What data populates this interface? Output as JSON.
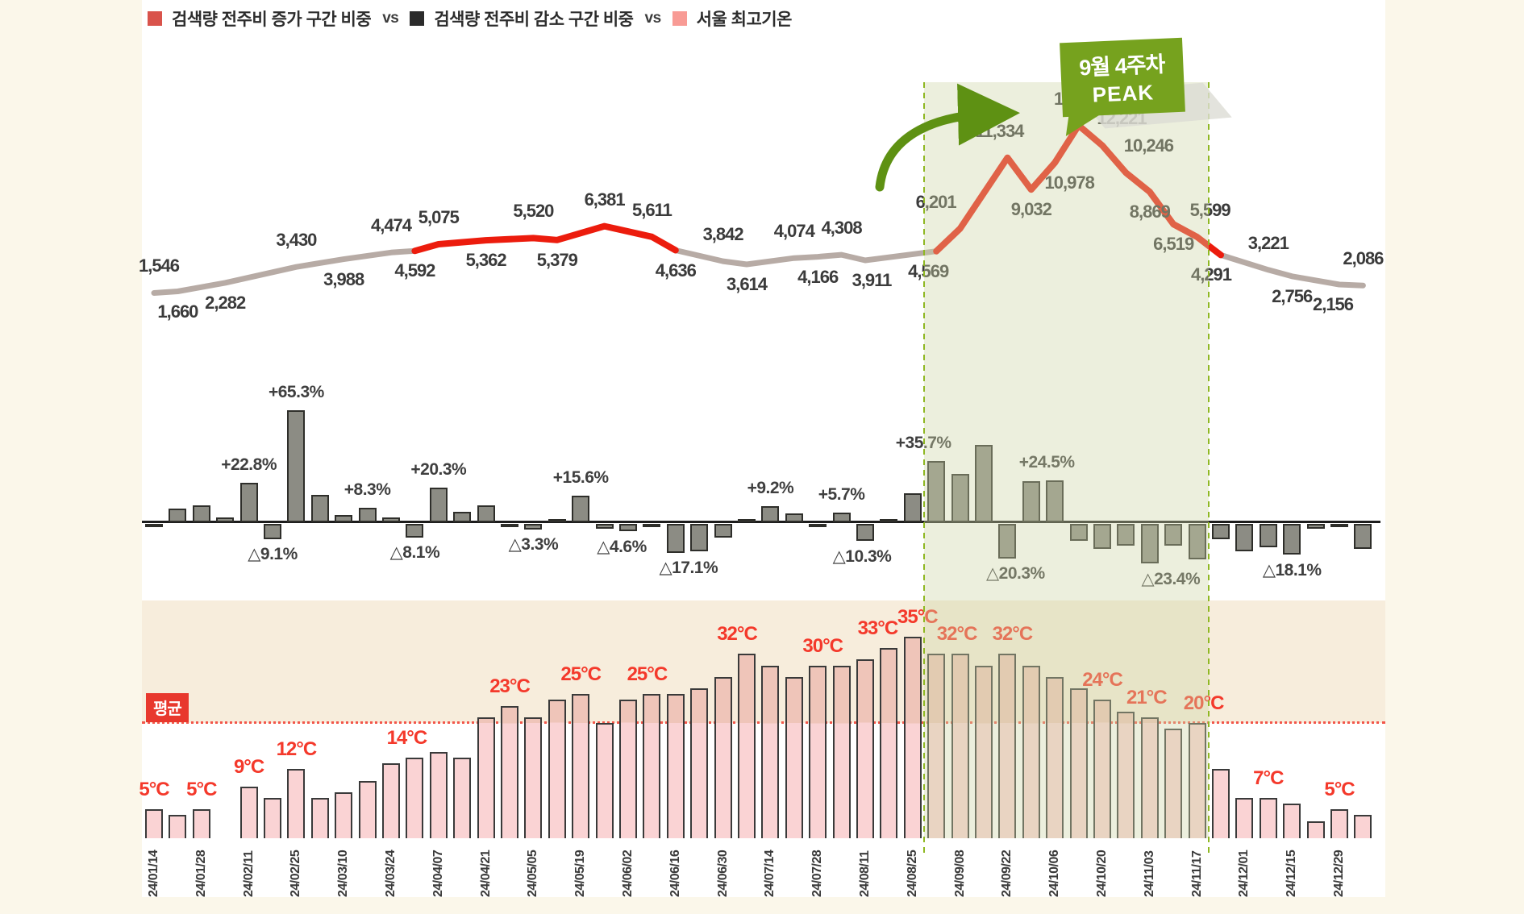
{
  "legend": {
    "increase_label": "검색량 전주비 증가 구간 비중",
    "vs1": "vs",
    "decrease_label": "검색량 전주비 감소 구간 비중",
    "vs2": "vs",
    "temp_label": "서울 최고기온",
    "increase_color": "#D9534B",
    "decrease_color": "#2B2B2B",
    "temp_color": "#F89B95"
  },
  "callout": {
    "line1": "9월 4주차",
    "line2": "PEAK",
    "color": "#76A21E"
  },
  "average_badge": "평균",
  "highlight": {
    "from": "24/08/25",
    "to": "24/11/17"
  },
  "chart_data": [
    {
      "type": "line",
      "name": "검색량 추이",
      "line_color_normal": "#B7ABA5",
      "line_color_increase": "#EC1C0D",
      "ylim": [
        0,
        14000
      ],
      "points": [
        {
          "week": 1,
          "value": 1546,
          "side": "above",
          "dx": 6
        },
        {
          "week": 2,
          "value": 1660,
          "side": "below"
        },
        {
          "week": 4,
          "value": 2282,
          "side": "below"
        },
        {
          "week": 7,
          "value": 3430,
          "side": "above"
        },
        {
          "week": 9,
          "value": 3988,
          "side": "below"
        },
        {
          "week": 11,
          "value": 4474,
          "side": "above"
        },
        {
          "week": 12,
          "value": 4592,
          "side": "below"
        },
        {
          "week": 13,
          "value": 5075,
          "side": "above"
        },
        {
          "week": 15,
          "value": 5362,
          "side": "below"
        },
        {
          "week": 17,
          "value": 5520,
          "side": "above"
        },
        {
          "week": 18,
          "value": 5379,
          "side": "below"
        },
        {
          "week": 20,
          "value": 6381,
          "side": "above"
        },
        {
          "week": 22,
          "value": 5611,
          "side": "above"
        },
        {
          "week": 23,
          "value": 4636,
          "side": "below"
        },
        {
          "week": 25,
          "value": 3842,
          "side": "above"
        },
        {
          "week": 26,
          "value": 3614,
          "side": "below"
        },
        {
          "week": 28,
          "value": 4074,
          "side": "above"
        },
        {
          "week": 29,
          "value": 4166,
          "side": "below"
        },
        {
          "week": 30,
          "value": 4308,
          "side": "above"
        },
        {
          "week": 31,
          "value": 3911,
          "side": "below",
          "dx": 8
        },
        {
          "week": 34,
          "value": 4569,
          "side": "below",
          "dx": -10
        },
        {
          "week": 35,
          "value": 6201,
          "side": "above",
          "dx": -30
        },
        {
          "week": 37,
          "value": 11334,
          "side": "above",
          "dx": -10
        },
        {
          "week": 38,
          "value": 9032,
          "side": "below"
        },
        {
          "week": 39,
          "value": 10978,
          "side": "below",
          "dx": 18
        },
        {
          "week": 40,
          "value": 13673,
          "side": "above"
        },
        {
          "week": 41,
          "value": 12221,
          "side": "above",
          "dx": 24
        },
        {
          "week": 42,
          "value": 10246,
          "side": "above",
          "dx": 28
        },
        {
          "week": 43,
          "value": 8869,
          "side": "below"
        },
        {
          "week": 44,
          "value": 6519,
          "side": "below"
        },
        {
          "week": 45,
          "value": 5599,
          "side": "above",
          "dx": 16
        },
        {
          "week": 46,
          "value": 4291,
          "side": "below",
          "dx": -12
        },
        {
          "week": 48,
          "value": 3221,
          "side": "above"
        },
        {
          "week": 49,
          "value": 2756,
          "side": "below"
        },
        {
          "week": 51,
          "value": 2156,
          "side": "below",
          "dx": -8
        },
        {
          "week": 52,
          "value": 2086,
          "side": "above"
        }
      ],
      "red_segments": [
        [
          6,
          13
        ],
        [
          20,
          31
        ]
      ]
    },
    {
      "type": "bar",
      "name": "검색량 전주비 증감률",
      "unit": "%",
      "bar_color": "#8C8C84",
      "values": [
        -1,
        8,
        10,
        3,
        22.8,
        -9.1,
        65.3,
        16,
        4,
        8.3,
        3,
        -8.1,
        20.3,
        6,
        10,
        -2,
        -3.3,
        2,
        15.6,
        -3,
        -4.6,
        -2,
        -17.1,
        -16,
        -8,
        2,
        9.2,
        5,
        -2,
        5.7,
        -10.3,
        2,
        16.8,
        35.7,
        28,
        45,
        -20.3,
        24,
        24.5,
        -10,
        -15,
        -13,
        -23.4,
        -13,
        -21,
        -9,
        -16,
        -14,
        -18.1,
        -3,
        -2,
        -15
      ],
      "labels": [
        {
          "bar": 5,
          "text": "+22.8%"
        },
        {
          "bar": 6,
          "text": "△9.1%"
        },
        {
          "bar": 7,
          "text": "+65.3%"
        },
        {
          "bar": 10,
          "text": "+8.3%"
        },
        {
          "bar": 12,
          "text": "△8.1%"
        },
        {
          "bar": 13,
          "text": "+20.3%"
        },
        {
          "bar": 17,
          "text": "△3.3%"
        },
        {
          "bar": 19,
          "text": "+15.6%"
        },
        {
          "bar": 21,
          "text": "△4.6%",
          "dx": -8
        },
        {
          "bar": 23,
          "text": "△17.1%",
          "dx": 16
        },
        {
          "bar": 27,
          "text": "+9.2%"
        },
        {
          "bar": 30,
          "text": "+5.7%"
        },
        {
          "bar": 31,
          "text": "△10.3%",
          "dx": -4
        },
        {
          "bar": 34,
          "text": "+35.7%",
          "dx": -16
        },
        {
          "bar": 37,
          "text": "△20.3%",
          "dx": 10
        },
        {
          "bar": 39,
          "text": "+24.5%",
          "dx": -10
        },
        {
          "bar": 43,
          "text": "△23.4%",
          "dx": 26
        },
        {
          "bar": 49,
          "text": "△18.1%"
        }
      ]
    },
    {
      "type": "bar",
      "name": "서울 최고기온",
      "unit": "°C",
      "bar_color": "#FAD3D4",
      "average_line": 20,
      "values": [
        5,
        4,
        5,
        0,
        9,
        7,
        12,
        7,
        8,
        10,
        13,
        14,
        15,
        14,
        21,
        23,
        21,
        24,
        25,
        20,
        24,
        25,
        25,
        26,
        28,
        32,
        30,
        28,
        30,
        30,
        31,
        33,
        35,
        32,
        32,
        30,
        32,
        30,
        28,
        26,
        24,
        22,
        21,
        19,
        20,
        12,
        7,
        7,
        6,
        3,
        5,
        4
      ],
      "labels": [
        {
          "bar": 1,
          "text": "5°C"
        },
        {
          "bar": 3,
          "text": "5°C"
        },
        {
          "bar": 5,
          "text": "9°C"
        },
        {
          "bar": 7,
          "text": "12°C"
        },
        {
          "bar": 12,
          "text": "14°C",
          "dx": -10
        },
        {
          "bar": 16,
          "text": "23°C"
        },
        {
          "bar": 19,
          "text": "25°C"
        },
        {
          "bar": 22,
          "text": "25°C",
          "dx": -6
        },
        {
          "bar": 26,
          "text": "32°C",
          "dx": -12
        },
        {
          "bar": 29,
          "text": "30°C",
          "dx": 6
        },
        {
          "bar": 32,
          "text": "33°C",
          "dx": -14
        },
        {
          "bar": 33,
          "text": "35°C",
          "dx": 6
        },
        {
          "bar": 35,
          "text": "32°C",
          "dx": -4
        },
        {
          "bar": 37,
          "text": "32°C",
          "dx": 6
        },
        {
          "bar": 41,
          "text": "24°C"
        },
        {
          "bar": 43,
          "text": "21°C",
          "dx": -4
        },
        {
          "bar": 45,
          "text": "20°C",
          "dx": 8
        },
        {
          "bar": 48,
          "text": "7°C"
        },
        {
          "bar": 51,
          "text": "5°C"
        }
      ]
    },
    {
      "type": "axis",
      "name": "주차 (격주 라벨)",
      "week_labels": [
        "24/01/14",
        "24/01/28",
        "24/02/11",
        "24/02/25",
        "24/03/10",
        "24/03/24",
        "24/04/07",
        "24/04/21",
        "24/05/05",
        "24/05/19",
        "24/06/02",
        "24/06/16",
        "24/06/30",
        "24/07/14",
        "24/07/28",
        "24/08/11",
        "24/08/25",
        "24/09/08",
        "24/09/22",
        "24/10/06",
        "24/10/20",
        "24/11/03",
        "24/11/17",
        "24/12/01",
        "24/12/15",
        "24/12/29"
      ]
    }
  ]
}
